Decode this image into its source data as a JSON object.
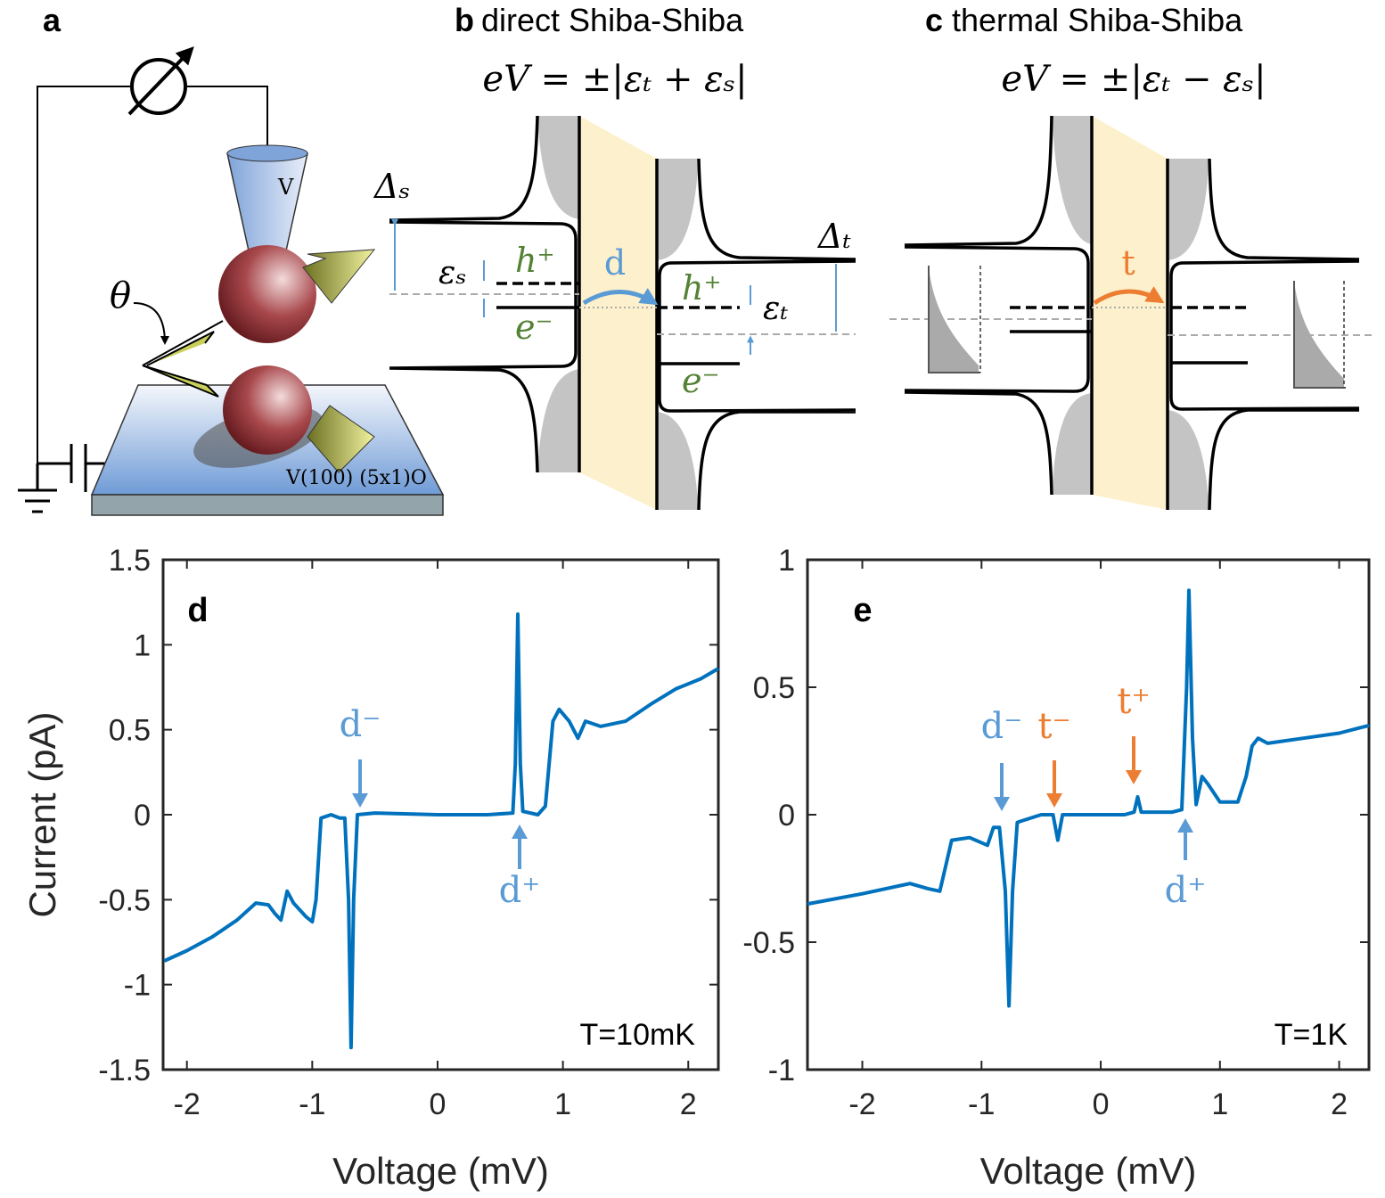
{
  "diagram": {
    "a": {
      "label": "a",
      "tip": "V",
      "angle": "θ",
      "surface": "V(100) (5x1)O"
    },
    "b": {
      "label": "b",
      "title": "direct Shiba-Shiba",
      "equation": "eV = ±|εₜ + εₛ|",
      "gap_s": "Δₛ",
      "eps_s": "εₛ",
      "hole_s": "h⁺",
      "elec_s": "e⁻",
      "process": "d",
      "gap_t": "Δₜ",
      "eps_t": "εₜ",
      "hole_t": "h⁺",
      "elec_t": "e⁻"
    },
    "c": {
      "label": "c",
      "title": "thermal Shiba-Shiba",
      "equation": "eV = ±|εₜ − εₛ|",
      "process": "t"
    }
  },
  "chart_data": [
    {
      "type": "line",
      "panel": "d",
      "note": "T=10mK",
      "xlabel": "Voltage (mV)",
      "ylabel": "Current (pA)",
      "xlim": [
        -2.19,
        2.24
      ],
      "ylim": [
        -1.5,
        1.5
      ],
      "xticks": [
        -2,
        -1,
        0,
        1,
        2
      ],
      "yticks": [
        1.5,
        1,
        0.5,
        0,
        -0.5,
        -1,
        -1.5
      ],
      "x": [
        -2.18,
        -2.0,
        -1.8,
        -1.6,
        -1.45,
        -1.35,
        -1.3,
        -1.25,
        -1.2,
        -1.15,
        -1.05,
        -1.0,
        -0.97,
        -0.93,
        -0.85,
        -0.78,
        -0.74,
        -0.71,
        -0.69,
        -0.67,
        -0.64,
        -0.5,
        0,
        0.4,
        0.6,
        0.62,
        0.64,
        0.66,
        0.68,
        0.8,
        0.86,
        0.92,
        0.97,
        1.05,
        1.12,
        1.18,
        1.3,
        1.5,
        1.7,
        1.9,
        2.1,
        2.24
      ],
      "series": [
        {
          "color": "#0072bd",
          "values": [
            -0.86,
            -0.8,
            -0.72,
            -0.62,
            -0.52,
            -0.53,
            -0.58,
            -0.62,
            -0.45,
            -0.52,
            -0.6,
            -0.63,
            -0.5,
            -0.02,
            0,
            -0.02,
            -0.02,
            -0.5,
            -1.37,
            -0.5,
            0.0,
            0.01,
            0,
            0.0,
            0.01,
            0.3,
            1.18,
            0.3,
            0.02,
            0.0,
            0.05,
            0.55,
            0.62,
            0.55,
            0.45,
            0.55,
            0.52,
            0.55,
            0.65,
            0.74,
            0.8,
            0.86
          ]
        }
      ],
      "annotations": [
        {
          "text": "d⁻",
          "color": "#5b9bd5"
        },
        {
          "text": "d⁺",
          "color": "#5b9bd5"
        }
      ]
    },
    {
      "type": "line",
      "panel": "e",
      "note": "T=1K",
      "xlabel": "Voltage (mV)",
      "xlim": [
        -2.46,
        2.25
      ],
      "ylim": [
        -1,
        1
      ],
      "xticks": [
        -2,
        -1,
        0,
        1,
        2
      ],
      "yticks": [
        1,
        0.5,
        0,
        -0.5,
        -1
      ],
      "x": [
        -2.46,
        -2.0,
        -1.6,
        -1.45,
        -1.35,
        -1.3,
        -1.25,
        -1.1,
        -0.95,
        -0.9,
        -0.85,
        -0.8,
        -0.77,
        -0.74,
        -0.7,
        -0.5,
        -0.4,
        -0.36,
        -0.32,
        0,
        0.2,
        0.28,
        0.31,
        0.34,
        0.6,
        0.68,
        0.72,
        0.74,
        0.77,
        0.8,
        0.85,
        0.9,
        1.0,
        1.15,
        1.22,
        1.27,
        1.32,
        1.4,
        1.7,
        2.0,
        2.25
      ],
      "series": [
        {
          "color": "#0072bd",
          "values": [
            -0.35,
            -0.31,
            -0.27,
            -0.29,
            -0.3,
            -0.2,
            -0.1,
            -0.09,
            -0.12,
            -0.05,
            -0.05,
            -0.3,
            -0.75,
            -0.3,
            -0.03,
            0,
            0,
            -0.1,
            0,
            0,
            0,
            0.01,
            0.07,
            0.01,
            0.01,
            0.02,
            0.5,
            0.88,
            0.3,
            0.04,
            0.15,
            0.12,
            0.05,
            0.05,
            0.15,
            0.27,
            0.3,
            0.28,
            0.3,
            0.32,
            0.35
          ]
        }
      ],
      "annotations": [
        {
          "text": "d⁻",
          "color": "#5b9bd5"
        },
        {
          "text": "t⁻",
          "color": "#ed7d31"
        },
        {
          "text": "t⁺",
          "color": "#ed7d31"
        },
        {
          "text": "d⁺",
          "color": "#5b9bd5"
        }
      ]
    }
  ]
}
